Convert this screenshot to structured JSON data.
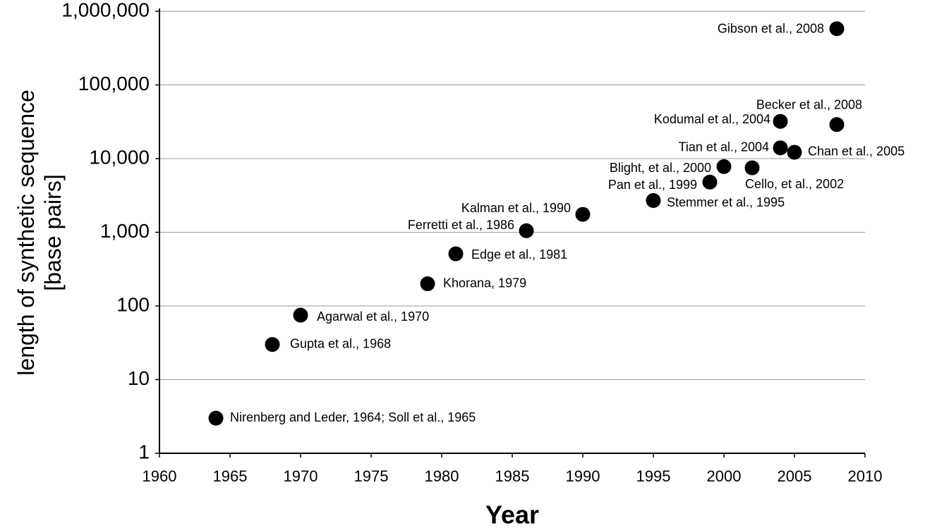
{
  "chart_data": {
    "type": "scatter",
    "ylabel": [
      "length of synthetic sequence",
      "[base pairs]"
    ],
    "xlabel": "Year",
    "log_y": true,
    "grid": true,
    "color": "#000000",
    "x": [
      1964,
      1968,
      1970,
      1979,
      1981,
      1986,
      1990,
      1995,
      1999,
      2000,
      2002,
      2004,
      2005,
      2004,
      2008,
      2008
    ],
    "values": [
      3,
      30,
      75,
      200,
      510,
      1050,
      1750,
      2700,
      4800,
      7800,
      7500,
      14000,
      12200,
      32000,
      29000,
      580000
    ],
    "labels": [
      "Nirenberg and Leder, 1964; Soll et al., 1965",
      "Gupta et al., 1968",
      "Agarwal et al., 1970",
      "Khorana, 1979",
      "Edge et al., 1981",
      "Ferretti et al., 1986",
      "Kalman et al., 1990",
      "Stemmer et al., 1995",
      "Pan et al., 1999",
      "Blight, et al., 2000",
      "Cello, et al., 2002",
      "Tian et al., 2004",
      "Chan et al., 2005",
      "Kodumal et al., 2004",
      "Becker et al., 2008",
      "Gibson et al., 2008"
    ],
    "xlim": [
      1960,
      2010
    ],
    "xticks": [
      1960,
      1965,
      1970,
      1975,
      1980,
      1985,
      1990,
      1995,
      2000,
      2005,
      2010
    ],
    "ylim": [
      1,
      1000000
    ],
    "yticks": [
      1,
      10,
      100,
      {
        "value": 1000,
        "label": "1,000"
      },
      {
        "value": 10000,
        "label": "10,000"
      },
      {
        "value": 100000,
        "label": "100,000"
      },
      {
        "value": 1000000,
        "label": "1,000,000"
      }
    ]
  }
}
